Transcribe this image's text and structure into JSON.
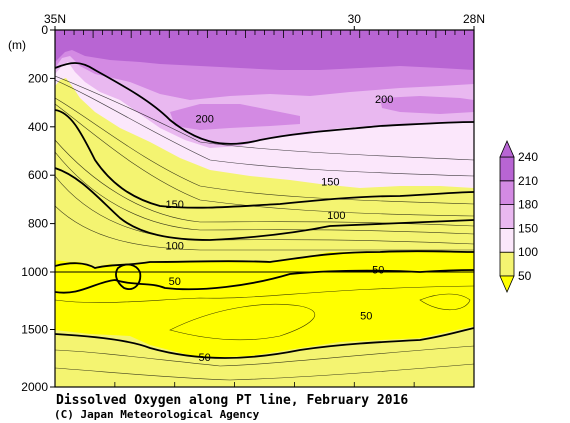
{
  "chart_data": {
    "type": "heatmap",
    "title": "Dissolved Oxygen along PT line, February 2016",
    "credit": "(C) Japan Meteorological Agency",
    "x_axis": {
      "direction": "north-to-south",
      "range_deg_lat": [
        35,
        28
      ],
      "tick_labels": [
        {
          "lat": 35,
          "label": "35N"
        },
        {
          "lat": 30,
          "label": "30"
        },
        {
          "lat": 28,
          "label": "28N"
        }
      ]
    },
    "y_axis": {
      "unit_label": "(m)",
      "range_m": [
        0,
        2000
      ],
      "scale_break_m": 1000,
      "tick_labels": [
        {
          "depth": 0,
          "label": "0"
        },
        {
          "depth": 200,
          "label": "200"
        },
        {
          "depth": 400,
          "label": "400"
        },
        {
          "depth": 600,
          "label": "600"
        },
        {
          "depth": 800,
          "label": "800"
        },
        {
          "depth": 1000,
          "label": "1000"
        },
        {
          "depth": 1500,
          "label": "1500"
        },
        {
          "depth": 2000,
          "label": "2000"
        }
      ]
    },
    "colorbar": {
      "levels": [
        "50",
        "100",
        "150",
        "180",
        "210",
        "240"
      ],
      "colors": [
        "#ffff00",
        "#f4f471",
        "#fbe7fb",
        "#e9b8f0",
        "#d38ae3",
        "#b865d3"
      ]
    },
    "contour_labels": [
      {
        "value": "200",
        "lat": 32.5,
        "depth": 365
      },
      {
        "value": "200",
        "lat": 29.5,
        "depth": 285
      },
      {
        "value": "150",
        "lat": 30.4,
        "depth": 625
      },
      {
        "value": "150",
        "lat": 33.0,
        "depth": 720
      },
      {
        "value": "100",
        "lat": 30.3,
        "depth": 765
      },
      {
        "value": "100",
        "lat": 33.0,
        "depth": 890
      },
      {
        "value": "50",
        "lat": 33.0,
        "depth": 1080
      },
      {
        "value": "50",
        "lat": 29.6,
        "depth": 990
      },
      {
        "value": "50",
        "lat": 29.8,
        "depth": 1380
      },
      {
        "value": "50",
        "lat": 32.5,
        "depth": 1740
      }
    ]
  }
}
